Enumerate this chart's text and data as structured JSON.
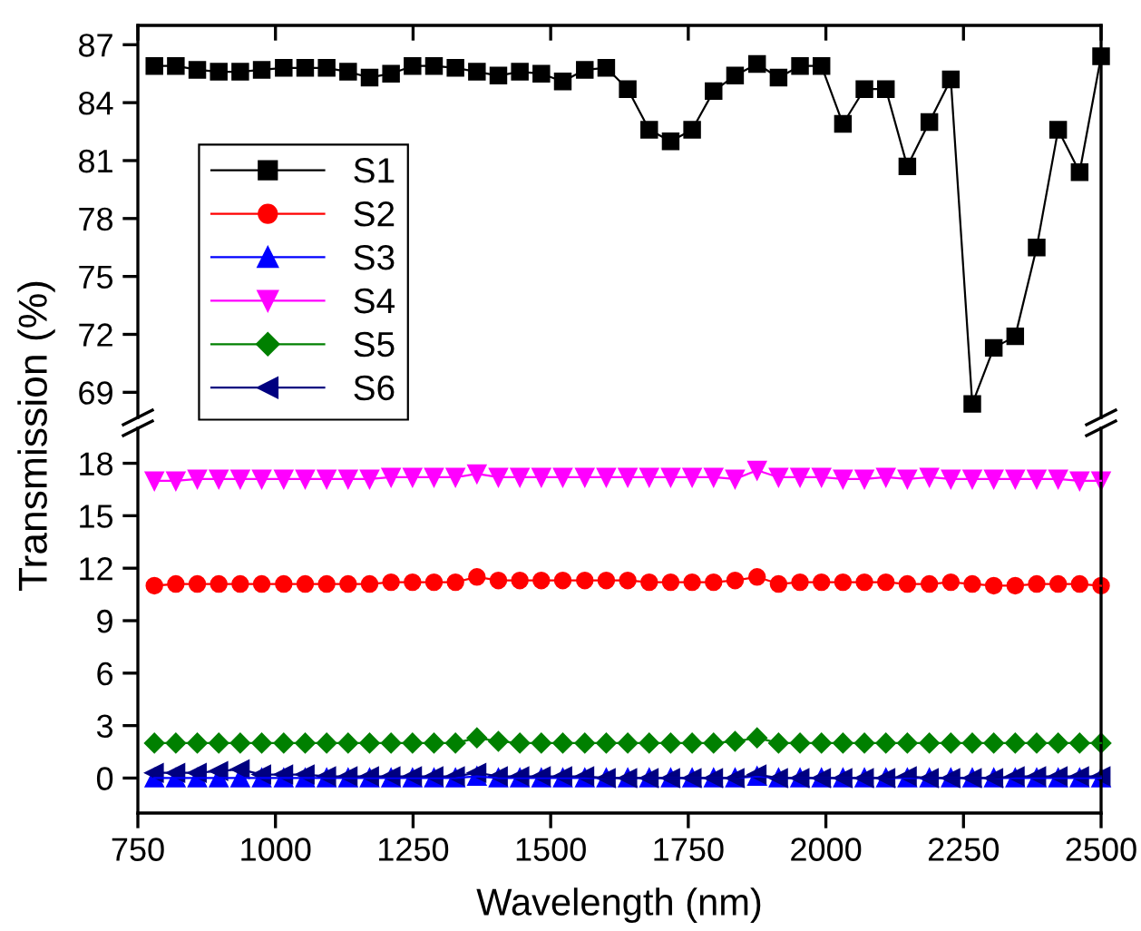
{
  "chart_data": [
    {
      "type": "line",
      "ylim": [
        67.7,
        88
      ],
      "yticks": [
        69,
        72,
        75,
        78,
        81,
        84,
        87
      ],
      "xlim": [
        750,
        2500
      ],
      "xticks": [
        750,
        1000,
        1250,
        1500,
        1750,
        2000,
        2250,
        2500
      ],
      "tick_labels": "y",
      "legend": "left",
      "grid": false,
      "x": [
        780,
        819,
        858,
        897,
        936,
        975,
        1015,
        1054,
        1093,
        1132,
        1171,
        1210,
        1249,
        1288,
        1327,
        1366,
        1405,
        1444,
        1483,
        1522,
        1562,
        1601,
        1640,
        1679,
        1718,
        1757,
        1796,
        1835,
        1875,
        1914,
        1953,
        1992,
        2031,
        2070,
        2109,
        2148,
        2188,
        2227,
        2266,
        2305,
        2344,
        2383,
        2422,
        2461,
        2500
      ],
      "series": [
        {
          "name": "S1",
          "color": "#000000",
          "marker": "square",
          "values": [
            85.9,
            85.9,
            85.7,
            85.6,
            85.6,
            85.7,
            85.8,
            85.8,
            85.8,
            85.6,
            85.3,
            85.5,
            85.9,
            85.9,
            85.8,
            85.6,
            85.4,
            85.6,
            85.5,
            85.1,
            85.7,
            85.8,
            84.7,
            82.6,
            82.0,
            82.6,
            84.6,
            85.4,
            86.0,
            85.3,
            85.9,
            85.9,
            82.9,
            84.7,
            84.7,
            80.7,
            83.0,
            85.2,
            68.4,
            71.3,
            71.9,
            76.5,
            82.6,
            80.4,
            86.4
          ]
        }
      ]
    },
    {
      "type": "line",
      "ylim": [
        -2,
        20
      ],
      "yticks": [
        0,
        3,
        6,
        9,
        12,
        15,
        18
      ],
      "xlim": [
        750,
        2500
      ],
      "xticks": [
        750,
        1000,
        1250,
        1500,
        1750,
        2000,
        2250,
        2500
      ],
      "xlabel": "Wavelength (nm)",
      "ylabel": "Transmission (%)",
      "legend": "left",
      "grid": false,
      "x": [
        780,
        819,
        858,
        897,
        936,
        975,
        1015,
        1054,
        1093,
        1132,
        1171,
        1210,
        1249,
        1288,
        1327,
        1366,
        1405,
        1444,
        1483,
        1522,
        1562,
        1601,
        1640,
        1679,
        1718,
        1757,
        1796,
        1835,
        1875,
        1914,
        1953,
        1992,
        2031,
        2070,
        2109,
        2148,
        2188,
        2227,
        2266,
        2305,
        2344,
        2383,
        2422,
        2461,
        2500
      ],
      "series": [
        {
          "name": "S2",
          "color": "#ff0000",
          "marker": "circle",
          "values": [
            11.0,
            11.1,
            11.1,
            11.1,
            11.1,
            11.1,
            11.1,
            11.1,
            11.1,
            11.1,
            11.1,
            11.2,
            11.2,
            11.2,
            11.2,
            11.5,
            11.3,
            11.3,
            11.3,
            11.3,
            11.3,
            11.3,
            11.3,
            11.2,
            11.2,
            11.2,
            11.2,
            11.3,
            11.5,
            11.1,
            11.2,
            11.2,
            11.2,
            11.2,
            11.2,
            11.1,
            11.1,
            11.2,
            11.1,
            11.0,
            11.0,
            11.1,
            11.1,
            11.1,
            11.0
          ]
        },
        {
          "name": "S3",
          "color": "#0000ff",
          "marker": "triangle",
          "values": [
            0.0,
            0.0,
            0.0,
            0.0,
            0.0,
            0.0,
            0.0,
            0.0,
            0.0,
            0.0,
            0.0,
            0.0,
            0.0,
            0.0,
            0.0,
            0.1,
            0.0,
            0.0,
            0.0,
            0.0,
            0.0,
            0.0,
            0.0,
            0.0,
            0.0,
            0.0,
            0.0,
            0.0,
            0.1,
            0.0,
            0.0,
            0.0,
            0.0,
            0.0,
            0.0,
            0.0,
            0.0,
            0.0,
            0.0,
            0.0,
            0.0,
            0.0,
            0.0,
            0.0,
            0.0
          ]
        },
        {
          "name": "S4",
          "color": "#ff00ff",
          "marker": "triangle_down",
          "values": [
            17.0,
            17.0,
            17.1,
            17.1,
            17.1,
            17.1,
            17.1,
            17.1,
            17.1,
            17.1,
            17.1,
            17.2,
            17.2,
            17.2,
            17.2,
            17.4,
            17.2,
            17.2,
            17.2,
            17.2,
            17.2,
            17.2,
            17.2,
            17.2,
            17.2,
            17.2,
            17.2,
            17.1,
            17.6,
            17.2,
            17.2,
            17.2,
            17.1,
            17.1,
            17.2,
            17.1,
            17.2,
            17.1,
            17.1,
            17.1,
            17.1,
            17.1,
            17.1,
            17.0,
            17.0
          ]
        },
        {
          "name": "S5",
          "color": "#008000",
          "marker": "diamond",
          "values": [
            2.0,
            2.0,
            2.0,
            2.0,
            2.0,
            2.0,
            2.0,
            2.0,
            2.0,
            2.0,
            2.0,
            2.0,
            2.0,
            2.0,
            2.0,
            2.3,
            2.1,
            2.0,
            2.0,
            2.0,
            2.0,
            2.0,
            2.0,
            2.0,
            2.0,
            2.0,
            2.0,
            2.1,
            2.3,
            2.0,
            2.0,
            2.0,
            2.0,
            2.0,
            2.0,
            2.0,
            2.0,
            2.0,
            2.0,
            2.0,
            2.0,
            2.0,
            2.0,
            2.0,
            2.0
          ]
        },
        {
          "name": "S6",
          "color": "#000080",
          "marker": "triangle_left",
          "values": [
            0.3,
            0.3,
            0.3,
            0.4,
            0.5,
            0.2,
            0.2,
            0.2,
            0.1,
            0.1,
            0.1,
            0.1,
            0.1,
            0.1,
            0.1,
            0.3,
            0.1,
            0.1,
            0.1,
            0.1,
            0.1,
            0.0,
            0.0,
            0.0,
            0.0,
            0.0,
            0.0,
            0.0,
            0.2,
            0.0,
            0.0,
            0.0,
            0.0,
            0.0,
            0.0,
            0.1,
            0.0,
            0.0,
            0.0,
            0.0,
            0.1,
            0.1,
            0.1,
            0.1,
            0.1
          ]
        }
      ]
    }
  ]
}
